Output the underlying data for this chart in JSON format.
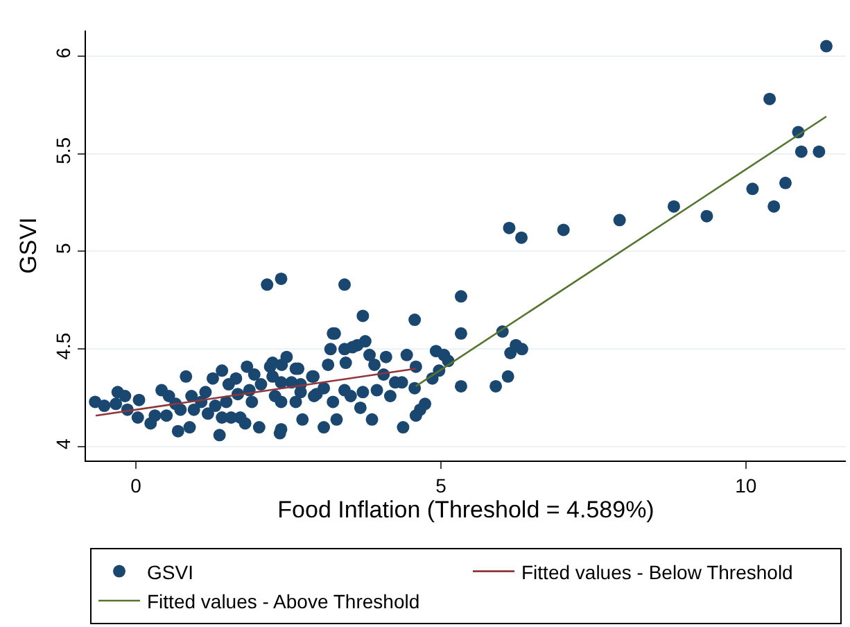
{
  "chart_data": {
    "type": "scatter",
    "xlabel": "Food Inflation (Threshold = 4.589%)",
    "ylabel": "GSVI",
    "xlim": [
      -0.82,
      11.64
    ],
    "ylim": [
      3.93,
      6.13
    ],
    "xticks": [
      0,
      5,
      10
    ],
    "yticks": [
      4,
      4.5,
      5,
      5.5,
      6
    ],
    "grid": "y",
    "legend": "bottom",
    "series": [
      {
        "name": "GSVI",
        "marker": "circle",
        "color": "#1a476f",
        "x": [
          11.32,
          10.39,
          10.86,
          10.91,
          11.2,
          10.65,
          10.11,
          10.46,
          9.36,
          8.82,
          7.93,
          7.01,
          6.12,
          6.32,
          5.33,
          5.33,
          5.33,
          6.01,
          6.23,
          6.33,
          6.14,
          5.9,
          6.1,
          3.42,
          2.38,
          3.72,
          4.57,
          3.26,
          3.76,
          3.63,
          3.55,
          3.19,
          3.42,
          4.92,
          5.05,
          5.12,
          3.83,
          4.1,
          4.44,
          2.47,
          3.91,
          4.59,
          3.15,
          3.44,
          2.91,
          2.62,
          4.06,
          4.25,
          4.36,
          4.86,
          4.97,
          4.57,
          3.72,
          3.95,
          4.17,
          3.42,
          3.08,
          2.92,
          3.23,
          3.52,
          3.68,
          3.87,
          3.29,
          2.73,
          3.08,
          4.38,
          4.59,
          4.74,
          4.66,
          2.55,
          2.7,
          2.38,
          2.38,
          2.38,
          2.62,
          -0.67,
          -0.52,
          -0.3,
          -0.33,
          -0.18,
          -0.14,
          0.05,
          0.03,
          0.24,
          0.31,
          0.42,
          0.5,
          0.54,
          0.65,
          0.69,
          0.73,
          0.82,
          0.88,
          0.91,
          0.95,
          1.07,
          1.14,
          1.18,
          1.26,
          1.3,
          1.37,
          1.41,
          1.41,
          1.48,
          1.52,
          1.56,
          1.64,
          1.67,
          1.71,
          1.79,
          1.82,
          1.86,
          1.9,
          1.94,
          2.02,
          2.05,
          2.15,
          2.2,
          2.24,
          2.28,
          2.36,
          2.39,
          2.24,
          2.66,
          2.7,
          2.89,
          2.96,
          3.23
        ],
        "values": [
          6.05,
          5.78,
          5.61,
          5.51,
          5.51,
          5.35,
          5.32,
          5.23,
          5.18,
          5.23,
          5.16,
          5.11,
          5.12,
          5.07,
          4.77,
          4.58,
          4.31,
          4.59,
          4.52,
          4.5,
          4.48,
          4.31,
          4.36,
          4.83,
          4.86,
          4.67,
          4.65,
          4.58,
          4.54,
          4.52,
          4.51,
          4.5,
          4.5,
          4.49,
          4.47,
          4.44,
          4.47,
          4.46,
          4.47,
          4.46,
          4.42,
          4.41,
          4.42,
          4.43,
          4.36,
          4.4,
          4.37,
          4.33,
          4.33,
          4.35,
          4.39,
          4.3,
          4.28,
          4.29,
          4.26,
          4.29,
          4.3,
          4.26,
          4.23,
          4.26,
          4.2,
          4.14,
          4.14,
          4.14,
          4.1,
          4.1,
          4.16,
          4.22,
          4.19,
          4.33,
          4.32,
          4.09,
          4.23,
          4.33,
          4.23,
          4.23,
          4.21,
          4.28,
          4.22,
          4.26,
          4.19,
          4.24,
          4.15,
          4.12,
          4.16,
          4.29,
          4.16,
          4.26,
          4.22,
          4.08,
          4.19,
          4.36,
          4.1,
          4.26,
          4.19,
          4.23,
          4.28,
          4.17,
          4.35,
          4.21,
          4.06,
          4.39,
          4.15,
          4.23,
          4.32,
          4.15,
          4.35,
          4.27,
          4.15,
          4.12,
          4.41,
          4.29,
          4.23,
          4.37,
          4.1,
          4.32,
          4.83,
          4.41,
          4.36,
          4.26,
          4.07,
          4.42,
          4.43,
          4.4,
          4.28,
          4.36,
          4.27,
          4.58
        ]
      },
      {
        "name": "Fitted values - Below Threshold",
        "type": "line",
        "marker": "none",
        "color": "#90353b",
        "x": [
          -0.66,
          4.589
        ],
        "values": [
          4.16,
          4.4
        ]
      },
      {
        "name": "Fitted values - Above Threshold",
        "type": "line",
        "marker": "none",
        "color": "#55752f",
        "x": [
          4.589,
          11.32
        ],
        "values": [
          4.31,
          5.69
        ]
      }
    ]
  }
}
